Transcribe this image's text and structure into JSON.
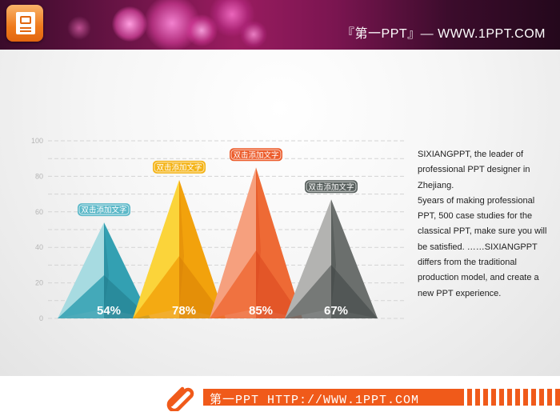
{
  "header": {
    "title": "『第一PPT』— WWW.1PPT.COM",
    "icon": "powerpoint-icon",
    "colors": {
      "background": "#6a1446",
      "bokeh": "#f25cb0"
    }
  },
  "chart_data": {
    "type": "bar",
    "style": "3d-pyramid",
    "categories": [
      "双击添加文字",
      "双击添加文字",
      "双击添加文字",
      "双击添加文字"
    ],
    "values": [
      54,
      78,
      85,
      67
    ],
    "value_labels": [
      "54%",
      "78%",
      "85%",
      "67%"
    ],
    "ylim": [
      0,
      100
    ],
    "yticks": [
      0,
      20,
      40,
      60,
      80,
      100
    ],
    "grid": true,
    "colors": [
      {
        "light": "#a7dbe1",
        "mid": "#33a0b2",
        "dark": "#227a8b",
        "tag": "#5bb8c8"
      },
      {
        "light": "#fbd43a",
        "mid": "#f2a20c",
        "dark": "#d87f08",
        "tag": "#f4b316"
      },
      {
        "light": "#f6a07e",
        "mid": "#ee6a35",
        "dark": "#d9461e",
        "tag": "#ec5b2a"
      },
      {
        "light": "#b3b3b1",
        "mid": "#6b6f6d",
        "dark": "#3e4543",
        "tag": "#58605e"
      }
    ]
  },
  "description": {
    "paragraphs": [
      "SIXIANGPPT,  the leader of professional PPT designer in Zhejiang.",
      "5years of making professional PPT, 500 case studies for the classical PPT, make sure you will be satisfied. ……SIXIANGPPT differs from the traditional production model, and create a new PPT experience."
    ]
  },
  "footer": {
    "text": "第一PPT HTTP://WWW.1PPT.COM",
    "icon": "paperclip-icon",
    "color": "#f05a1a"
  }
}
